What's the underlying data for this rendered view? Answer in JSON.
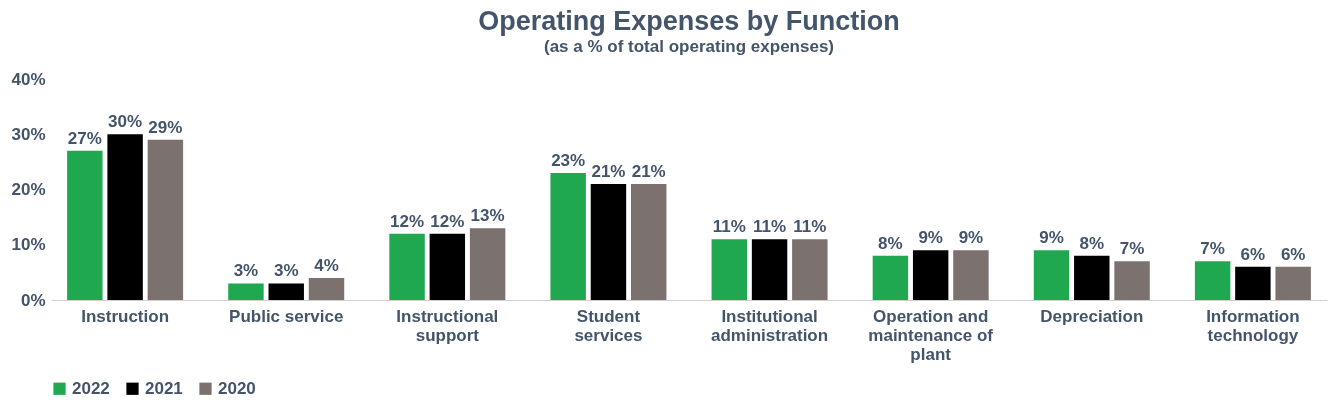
{
  "chart_data": {
    "type": "bar",
    "title": "Operating Expenses by Function",
    "subtitle": "(as a % of total operating expenses)",
    "categories": [
      "Instruction",
      "Public service",
      "Instructional support",
      "Student services",
      "Institutional administration",
      "Operation and maintenance of plant",
      "Depreciation",
      "Information technology"
    ],
    "series": [
      {
        "name": "2022",
        "color": "#1fa84f",
        "values": [
          27,
          3,
          12,
          23,
          11,
          8,
          9,
          7
        ],
        "value_labels": [
          "27%",
          "3%",
          "12%",
          "23%",
          "11%",
          "8%",
          "9%",
          "7%"
        ]
      },
      {
        "name": "2021",
        "color": "#000000",
        "values": [
          30,
          3,
          12,
          21,
          11,
          9,
          8,
          6
        ],
        "value_labels": [
          "30%",
          "3%",
          "12%",
          "21%",
          "11%",
          "9%",
          "8%",
          "6%"
        ]
      },
      {
        "name": "2020",
        "color": "#7b716e",
        "values": [
          29,
          4,
          13,
          21,
          11,
          9,
          7,
          6
        ],
        "value_labels": [
          "29%",
          "4%",
          "13%",
          "21%",
          "11%",
          "9%",
          "7%",
          "6%"
        ]
      }
    ],
    "ylim": [
      0,
      40
    ],
    "yticks": [
      {
        "value": 0,
        "label": "0%"
      },
      {
        "value": 10,
        "label": "10%"
      },
      {
        "value": 20,
        "label": "20%"
      },
      {
        "value": 30,
        "label": "30%"
      },
      {
        "value": 40,
        "label": "40%"
      }
    ],
    "grid": false,
    "legend": "bottom"
  }
}
